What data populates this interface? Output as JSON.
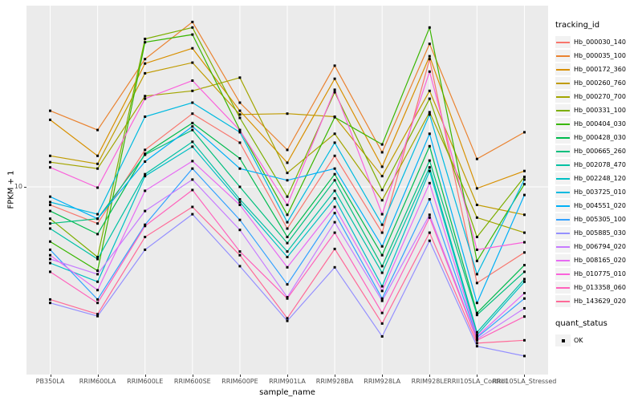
{
  "figure": {
    "panel_bg": "#EBEBEB",
    "grid_color": "#FFFFFF",
    "legend_key_bg": "#F2F2F2",
    "tick_text_color": "#4D4D4D"
  },
  "chart_data": {
    "type": "line",
    "title": "",
    "xlabel": "sample_name",
    "ylabel": "FPKM + 1",
    "y_scale": "log10",
    "y_tick_labels": [
      "10"
    ],
    "y_gridline_value": 10,
    "ylim_log": [
      1.05,
      110
    ],
    "grid": "major-on",
    "point_marker": "filled-square",
    "point_color": "#000000",
    "legend_position": "right",
    "legend_title": "tracking_id",
    "categories": [
      "PB350LA",
      "RRIM600LA",
      "RRIM600LE",
      "RRIM600SE",
      "RRIM600PE",
      "RRIM901LA",
      "RRIM928BA",
      "RRIM928LA",
      "RRIM928LE",
      "RRII105LA_Control",
      "RRII105LA_Stressed"
    ],
    "series": [
      {
        "name": "Hb_000030_140",
        "color": "#F8766D",
        "values": [
          7.9,
          6.2,
          16.2,
          26,
          17.8,
          5.8,
          15,
          5.5,
          53,
          2.85,
          4.25
        ]
      },
      {
        "name": "Hb_000035_100",
        "color": "#EA8331",
        "values": [
          27,
          21,
          53,
          86,
          30,
          16.2,
          48.6,
          15.7,
          64.6,
          14.4,
          20.4
        ]
      },
      {
        "name": "Hb_000172_360",
        "color": "#D89000",
        "values": [
          24,
          15,
          50,
          61,
          27,
          13.7,
          41,
          13,
          55,
          9.8,
          12.3
        ]
      },
      {
        "name": "Hb_000260_760",
        "color": "#C09B00",
        "values": [
          15,
          13.5,
          44,
          50.6,
          25.7,
          26,
          25,
          11.5,
          35,
          7.9,
          6.95
        ]
      },
      {
        "name": "Hb_000270_700",
        "color": "#A3A500",
        "values": [
          13.8,
          12.7,
          32.7,
          35,
          41.6,
          12,
          20,
          8.4,
          26.5,
          6.7,
          5.5
        ]
      },
      {
        "name": "Hb_000331_100",
        "color": "#7CAE00",
        "values": [
          6.6,
          4.0,
          69,
          80,
          24.6,
          8.8,
          34.4,
          9.6,
          31.6,
          5.2,
          11.4
        ]
      },
      {
        "name": "Hb_000404_030",
        "color": "#39B600",
        "values": [
          4.9,
          3.35,
          66,
          73,
          21,
          6.95,
          24.8,
          17.4,
          80,
          3.8,
          10.35
        ]
      },
      {
        "name": "Hb_000428_030",
        "color": "#00BB4E",
        "values": [
          7.3,
          5.4,
          15.4,
          23,
          14.5,
          5.2,
          11.8,
          4.1,
          17,
          1.93,
          3.6
        ]
      },
      {
        "name": "Hb_000665_260",
        "color": "#00BF7D",
        "values": [
          6.2,
          6.6,
          15.2,
          21,
          10,
          4.8,
          10.9,
          3.55,
          14.1,
          1.88,
          3.3
        ]
      },
      {
        "name": "Hb_002078_470",
        "color": "#00C1A3",
        "values": [
          5.8,
          3.9,
          11.8,
          18,
          8.5,
          4.3,
          9.5,
          3.26,
          12.9,
          1.5,
          3.0
        ]
      },
      {
        "name": "Hb_002248_120",
        "color": "#00BFC4",
        "values": [
          3.7,
          2.9,
          11.5,
          16.9,
          8.2,
          4.0,
          8.6,
          2.73,
          12.3,
          1.45,
          2.9
        ]
      },
      {
        "name": "Hb_003725_010",
        "color": "#00BAE0",
        "values": [
          8.2,
          7.0,
          25,
          30,
          20.4,
          6.3,
          17.8,
          6.1,
          25.7,
          3.2,
          11
        ]
      },
      {
        "name": "Hb_004551_020",
        "color": "#00B0F6",
        "values": [
          8.8,
          6.6,
          13.9,
          22,
          12.7,
          10.9,
          12.7,
          4.6,
          20,
          2.2,
          9.0
        ]
      },
      {
        "name": "Hb_005305_100",
        "color": "#35A2FF",
        "values": [
          4.4,
          2.3,
          6.1,
          12.7,
          6.5,
          2.8,
          7.1,
          2.33,
          8.5,
          1.4,
          2.33
        ]
      },
      {
        "name": "Hb_005885_030",
        "color": "#9590FF",
        "values": [
          2.2,
          1.85,
          4.4,
          7.0,
          3.55,
          1.74,
          3.5,
          1.42,
          4.95,
          1.25,
          1.1
        ]
      },
      {
        "name": "Hb_006794_020",
        "color": "#C77CFF",
        "values": [
          3.9,
          3.2,
          7.3,
          11,
          5.7,
          2.37,
          6.3,
          2.26,
          6.95,
          1.37,
          2.05
        ]
      },
      {
        "name": "Hb_008165_020",
        "color": "#E76BF3",
        "values": [
          4.1,
          2.6,
          9.5,
          14,
          7.9,
          3.5,
          7.7,
          2.57,
          10.5,
          1.42,
          2.5
        ]
      },
      {
        "name": "Hb_010775_010",
        "color": "#FA62DB",
        "values": [
          12.9,
          9.9,
          31.6,
          40,
          20.9,
          7.9,
          35.5,
          7.0,
          45,
          4.4,
          4.85
        ]
      },
      {
        "name": "Hb_013358_060",
        "color": "#FF62BC",
        "values": [
          3.3,
          2.2,
          6.0,
          9.6,
          4.3,
          2.33,
          5.5,
          1.93,
          6.7,
          1.35,
          1.84
        ]
      },
      {
        "name": "Hb_143629_020",
        "color": "#FF6A98",
        "values": [
          2.3,
          1.9,
          5.2,
          7.7,
          4.1,
          1.8,
          4.45,
          1.68,
          5.5,
          1.3,
          1.35
        ]
      }
    ],
    "quant_legend": {
      "title": "quant_status",
      "items": [
        {
          "label": "OK",
          "marker": "black-square"
        }
      ]
    }
  }
}
